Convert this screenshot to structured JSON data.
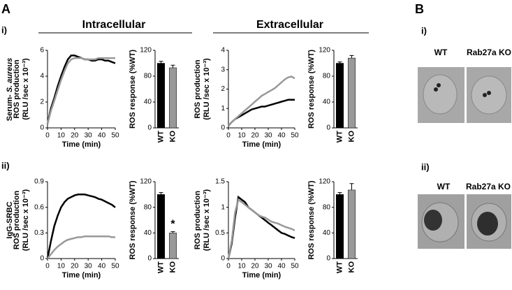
{
  "labels": {
    "panel_a": "A",
    "panel_b": "B",
    "row_i": "i)",
    "row_ii": "ii)",
    "intracellular": "Intracellular",
    "extracellular": "Extracellular",
    "row_i_side": [
      "Serum-",
      "S. aureus"
    ],
    "row_ii_side": "IgG-SRBC",
    "b_i": "i)",
    "b_ii": "ii)",
    "b_wt_i": "WT",
    "b_ko_i": "Rab27a KO",
    "b_wt_ii": "WT",
    "b_ko_ii": "Rab27a KO"
  },
  "chart_data": [
    {
      "type": "line",
      "x": [
        0,
        2.5,
        5,
        7.5,
        10,
        12.5,
        15,
        17.5,
        20,
        22.5,
        25,
        27.5,
        30,
        32.5,
        35,
        37.5,
        40,
        42.5,
        45,
        47.5,
        50
      ],
      "xlim": [
        0,
        50
      ],
      "xticks": [
        0,
        10,
        20,
        30,
        40,
        50
      ],
      "xlabel": "Time (min)",
      "ylabel": [
        "ROS production",
        "(RLU /sec x 10⁻³)"
      ],
      "ylim": [
        0,
        6
      ],
      "yticks": [
        0,
        2,
        4,
        6
      ],
      "series": [
        {
          "color": "#000000",
          "values": [
            0.3,
            1.5,
            2.3,
            3.2,
            4.0,
            4.7,
            5.3,
            5.6,
            5.6,
            5.5,
            5.4,
            5.3,
            5.3,
            5.2,
            5.2,
            5.3,
            5.3,
            5.2,
            5.2,
            5.1,
            5.0
          ]
        },
        {
          "color": "#999999",
          "values": [
            0.3,
            1.3,
            2.1,
            2.9,
            3.7,
            4.4,
            5.0,
            5.3,
            5.4,
            5.4,
            5.4,
            5.3,
            5.3,
            5.3,
            5.3,
            5.4,
            5.4,
            5.4,
            5.4,
            5.4,
            5.4
          ]
        }
      ]
    },
    {
      "type": "bar",
      "categories": [
        "WT",
        "KO"
      ],
      "values": [
        100,
        93
      ],
      "errors": [
        3,
        4
      ],
      "colors": [
        "#000000",
        "#999999"
      ],
      "ylabel": "ROS response (%WT)",
      "ylim": [
        0,
        120
      ],
      "yticks": [
        0,
        40,
        80,
        120
      ]
    },
    {
      "type": "line",
      "x": [
        0,
        2.5,
        5,
        7.5,
        10,
        12.5,
        15,
        17.5,
        20,
        22.5,
        25,
        27.5,
        30,
        32.5,
        35,
        37.5,
        40,
        42.5,
        45,
        47.5,
        50
      ],
      "xlim": [
        0,
        50
      ],
      "xticks": [
        0,
        10,
        20,
        30,
        40,
        50
      ],
      "xlabel": "Time (min)",
      "ylabel": [
        "ROS production",
        "(RLU /sec x 10⁻³)"
      ],
      "ylim": [
        0,
        4
      ],
      "yticks": [
        0,
        1,
        2,
        3,
        4
      ],
      "series": [
        {
          "color": "#000000",
          "values": [
            0.1,
            0.3,
            0.45,
            0.55,
            0.65,
            0.75,
            0.85,
            0.95,
            1.0,
            1.05,
            1.1,
            1.1,
            1.15,
            1.2,
            1.25,
            1.3,
            1.35,
            1.4,
            1.45,
            1.45,
            1.45
          ]
        },
        {
          "color": "#999999",
          "values": [
            0.1,
            0.3,
            0.45,
            0.6,
            0.75,
            0.9,
            1.05,
            1.2,
            1.35,
            1.5,
            1.65,
            1.75,
            1.85,
            1.95,
            2.05,
            2.2,
            2.35,
            2.5,
            2.6,
            2.65,
            2.55
          ]
        }
      ]
    },
    {
      "type": "bar",
      "categories": [
        "WT",
        "KO"
      ],
      "values": [
        100,
        108
      ],
      "errors": [
        2,
        4
      ],
      "colors": [
        "#000000",
        "#999999"
      ],
      "ylabel": "ROS response (%WT)",
      "ylim": [
        0,
        120
      ],
      "yticks": [
        0,
        40,
        80,
        120
      ]
    },
    {
      "type": "line",
      "x": [
        0,
        2.5,
        5,
        7.5,
        10,
        12.5,
        15,
        17.5,
        20,
        22.5,
        25,
        27.5,
        30,
        32.5,
        35,
        37.5,
        40,
        42.5,
        45,
        47.5,
        50
      ],
      "xlim": [
        0,
        50
      ],
      "xticks": [
        0,
        10,
        20,
        30,
        40,
        50
      ],
      "xlabel": "Time (min)",
      "ylabel": [
        "ROS production",
        "(RLU /sec x 10⁻³)"
      ],
      "ylim": [
        0,
        0.9
      ],
      "yticks": [
        0,
        0.3,
        0.6,
        0.9
      ],
      "series": [
        {
          "color": "#000000",
          "values": [
            0,
            0.2,
            0.38,
            0.5,
            0.6,
            0.66,
            0.7,
            0.72,
            0.74,
            0.75,
            0.75,
            0.75,
            0.74,
            0.73,
            0.72,
            0.7,
            0.69,
            0.67,
            0.65,
            0.63,
            0.6
          ]
        },
        {
          "color": "#999999",
          "values": [
            0,
            0.05,
            0.1,
            0.14,
            0.17,
            0.2,
            0.22,
            0.23,
            0.24,
            0.25,
            0.25,
            0.26,
            0.26,
            0.26,
            0.26,
            0.26,
            0.26,
            0.26,
            0.26,
            0.25,
            0.25
          ]
        }
      ]
    },
    {
      "type": "bar",
      "categories": [
        "WT",
        "KO"
      ],
      "values": [
        100,
        40
      ],
      "errors": [
        3,
        2
      ],
      "colors": [
        "#000000",
        "#999999"
      ],
      "ylabel": "ROS response (%WT)",
      "ylim": [
        0,
        120
      ],
      "yticks": [
        0,
        40,
        80,
        120
      ],
      "annotation": "*"
    },
    {
      "type": "line",
      "x": [
        0,
        2.5,
        5,
        7.5,
        10,
        12.5,
        15,
        17.5,
        20,
        22.5,
        25,
        27.5,
        30,
        32.5,
        35,
        37.5,
        40,
        42.5,
        45,
        47.5,
        50
      ],
      "xlim": [
        0,
        50
      ],
      "xticks": [
        0,
        10,
        20,
        30,
        40,
        50
      ],
      "xlabel": "Time (min)",
      "ylabel": [
        "ROS production",
        "(RLU /sec x 10⁻³)"
      ],
      "ylim": [
        0,
        1.5
      ],
      "yticks": [
        0,
        0.5,
        1,
        1.5
      ],
      "series": [
        {
          "color": "#000000",
          "values": [
            0,
            0.3,
            0.8,
            1.2,
            1.15,
            1.1,
            1.0,
            0.95,
            0.9,
            0.85,
            0.8,
            0.75,
            0.7,
            0.65,
            0.6,
            0.55,
            0.5,
            0.48,
            0.45,
            0.42,
            0.4
          ]
        },
        {
          "color": "#999999",
          "values": [
            0,
            0.35,
            0.9,
            1.15,
            1.1,
            1.05,
            1.0,
            0.95,
            0.9,
            0.85,
            0.82,
            0.8,
            0.76,
            0.72,
            0.7,
            0.68,
            0.65,
            0.62,
            0.6,
            0.58,
            0.55
          ]
        }
      ]
    },
    {
      "type": "bar",
      "categories": [
        "WT",
        "KO"
      ],
      "values": [
        100,
        107
      ],
      "errors": [
        3,
        10
      ],
      "colors": [
        "#000000",
        "#999999"
      ],
      "ylabel": "ROS response (%WT)",
      "ylim": [
        0,
        120
      ],
      "yticks": [
        0,
        40,
        80,
        120
      ]
    }
  ]
}
